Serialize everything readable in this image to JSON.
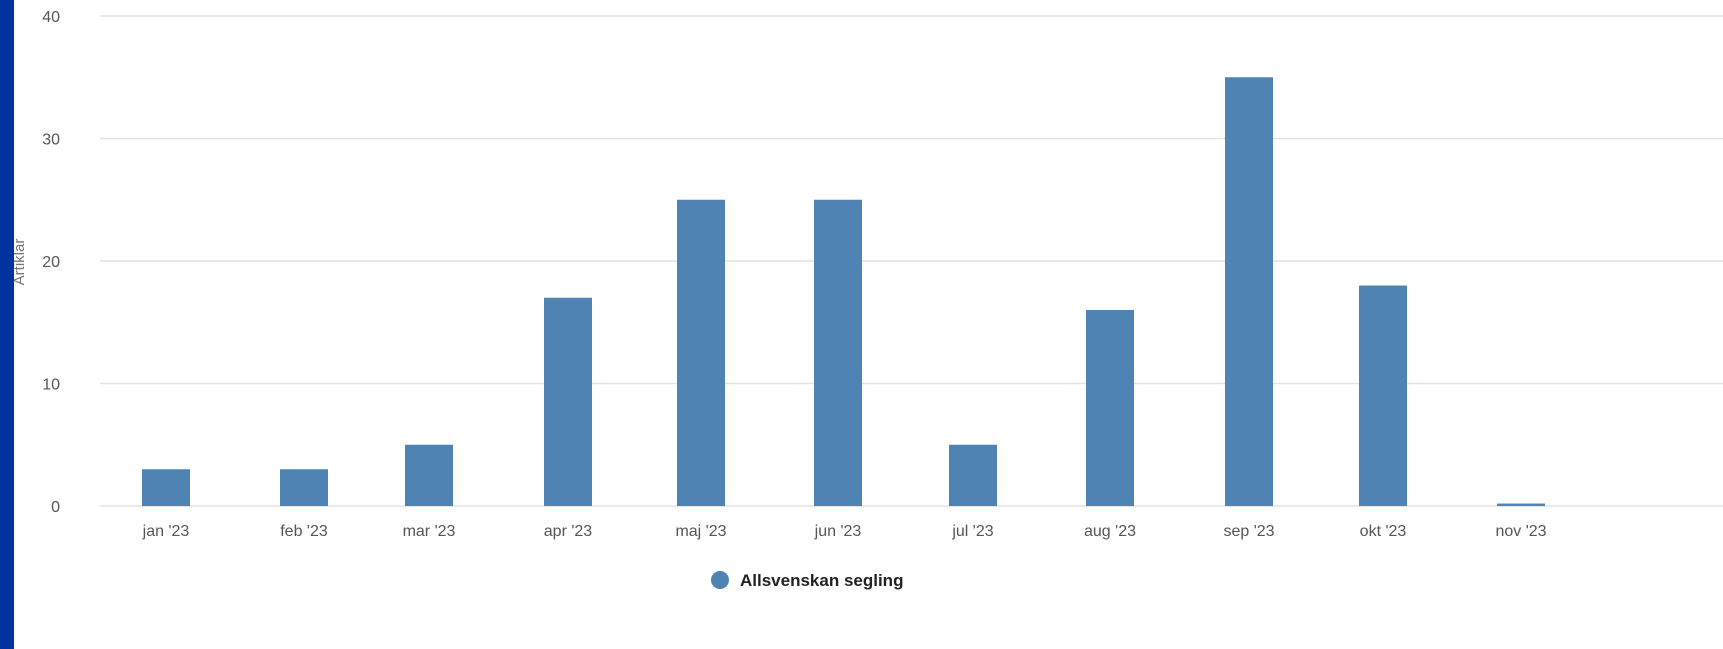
{
  "chart_data": {
    "type": "bar",
    "categories": [
      "jan '23",
      "feb '23",
      "mar '23",
      "apr '23",
      "maj '23",
      "jun '23",
      "jul '23",
      "aug '23",
      "sep '23",
      "okt '23",
      "nov '23"
    ],
    "series": [
      {
        "name": "Allsvenskan segling",
        "values": [
          3,
          3,
          5,
          17,
          25,
          25,
          5,
          16,
          35,
          18,
          0.2
        ],
        "color": "#4e83b3"
      }
    ],
    "xlabel": "",
    "ylabel": "Artiklar",
    "ylim": [
      0,
      40
    ],
    "yticks": [
      0,
      10,
      20,
      30,
      40
    ],
    "grid": true,
    "legend": "bottom-center",
    "gridColor": "#e2e2e2"
  }
}
